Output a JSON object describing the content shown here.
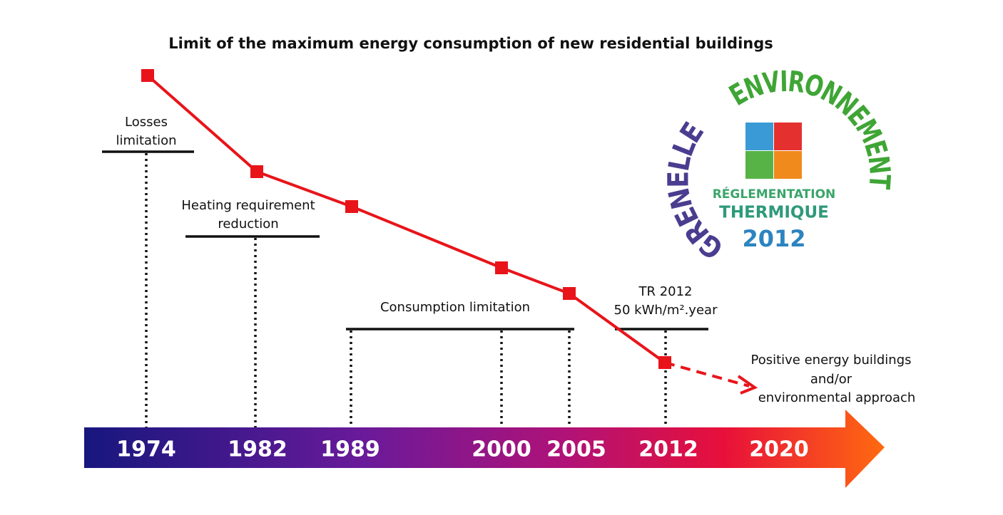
{
  "title": "Limit of the maximum energy consumption of new residential buildings",
  "timeline": {
    "years": [
      "1974",
      "1982",
      "1989",
      "2000",
      "2005",
      "2012",
      "2020"
    ]
  },
  "phases": [
    {
      "lines": [
        "Losses",
        "limitation"
      ]
    },
    {
      "lines": [
        "Heating requirement",
        "reduction"
      ]
    },
    {
      "lines": [
        "Consumption limitation"
      ]
    },
    {
      "lines": [
        "TR 2012",
        "50 kWh/m².year"
      ]
    }
  ],
  "future": [
    "Positive energy buildings",
    "and/or",
    "environmental approach"
  ],
  "logo": {
    "arc_left": "GRENELLE",
    "arc_top": "ENVIRONNEMENT",
    "line1": "RÉGLEMENTATION",
    "line2": "THERMIQUE",
    "year": "2012"
  }
}
